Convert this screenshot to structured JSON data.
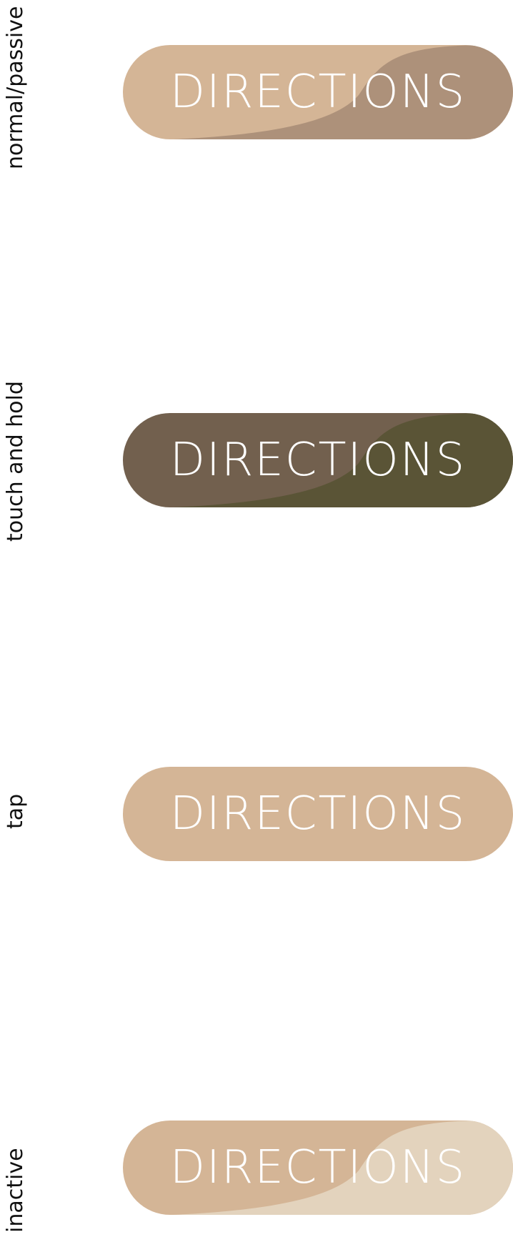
{
  "states": [
    {
      "label": "normal/passive",
      "button_label": "DIRECTIONS",
      "base_color": "#d4b596",
      "overlay_color": "#ad917a",
      "has_swoosh": true
    },
    {
      "label": "touch and hold",
      "button_label": "DIRECTIONS",
      "base_color": "#72604e",
      "overlay_color": "#5a5436",
      "has_swoosh": true
    },
    {
      "label": "tap",
      "button_label": "DIRECTIONS",
      "base_color": "#d4b596",
      "overlay_color": "#d4b596",
      "has_swoosh": false
    },
    {
      "label": "inactive",
      "button_label": "DIRECTIONS",
      "base_color": "#d4b596",
      "overlay_color": "#e3d3bd",
      "has_swoosh": true
    }
  ]
}
